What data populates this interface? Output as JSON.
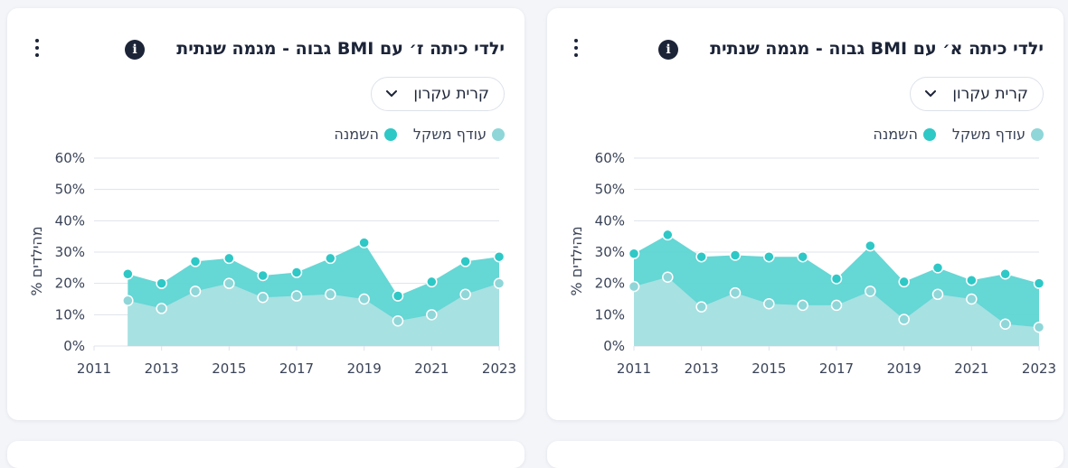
{
  "colors": {
    "overweight": "#a8e1e2",
    "overweight_dot": "#8fd6d8",
    "obesity": "#2ec8c6",
    "obesity_fill": "#5dd5d3",
    "grid": "#dde3ec",
    "text": "#1c2438"
  },
  "cards": [
    {
      "title": "ילדי כיתה ז׳ עם BMI גבוה - מגמה שנתית",
      "info_icon": "i",
      "selector_value": "קרית עקרון",
      "legend": {
        "overweight": "עודף משקל",
        "obesity": "השמנה"
      }
    },
    {
      "title": "ילדי כיתה א׳ עם BMI גבוה - מגמה שנתית",
      "info_icon": "i",
      "selector_value": "קרית עקרון",
      "legend": {
        "overweight": "עודף משקל",
        "obesity": "השמנה"
      }
    }
  ],
  "chart_data": [
    {
      "type": "area",
      "title": "ילדי כיתה ז׳ עם BMI גבוה - מגמה שנתית",
      "xlabel": "",
      "ylabel": "% מהילדים",
      "xlim": [
        2011,
        2023
      ],
      "ylim": [
        0,
        60
      ],
      "x_ticks": [
        "2011",
        "2013",
        "2015",
        "2017",
        "2019",
        "2021",
        "2023"
      ],
      "y_ticks": [
        "0%",
        "10%",
        "20%",
        "30%",
        "40%",
        "50%",
        "60%"
      ],
      "x": [
        2012,
        2013,
        2014,
        2015,
        2016,
        2017,
        2018,
        2019,
        2020,
        2021,
        2022,
        2023
      ],
      "series": [
        {
          "name": "עודף משקל",
          "values": [
            14.5,
            12,
            17.5,
            20,
            15.5,
            16,
            16.5,
            15,
            8,
            10,
            16.5,
            20
          ]
        },
        {
          "name": "השמנה",
          "values": [
            23,
            20,
            27,
            28,
            22.5,
            23.5,
            28,
            33,
            16,
            20.5,
            27,
            28.5
          ]
        }
      ]
    },
    {
      "type": "area",
      "title": "ילדי כיתה א׳ עם BMI גבוה - מגמה שנתית",
      "xlabel": "",
      "ylabel": "% מהילדים",
      "xlim": [
        2011,
        2023
      ],
      "ylim": [
        0,
        60
      ],
      "x_ticks": [
        "2011",
        "2013",
        "2015",
        "2017",
        "2019",
        "2021",
        "2023"
      ],
      "y_ticks": [
        "0%",
        "10%",
        "20%",
        "30%",
        "40%",
        "50%",
        "60%"
      ],
      "x": [
        2011,
        2012,
        2013,
        2014,
        2015,
        2016,
        2017,
        2018,
        2019,
        2020,
        2021,
        2022,
        2023
      ],
      "series": [
        {
          "name": "עודף משקל",
          "values": [
            19,
            22,
            12.5,
            17,
            13.5,
            13,
            13,
            17.5,
            8.5,
            16.5,
            15,
            7,
            6
          ]
        },
        {
          "name": "השמנה",
          "values": [
            29.5,
            35.5,
            28.5,
            29,
            28.5,
            28.5,
            21.5,
            32,
            20.5,
            25,
            21,
            23,
            20
          ]
        }
      ]
    }
  ]
}
